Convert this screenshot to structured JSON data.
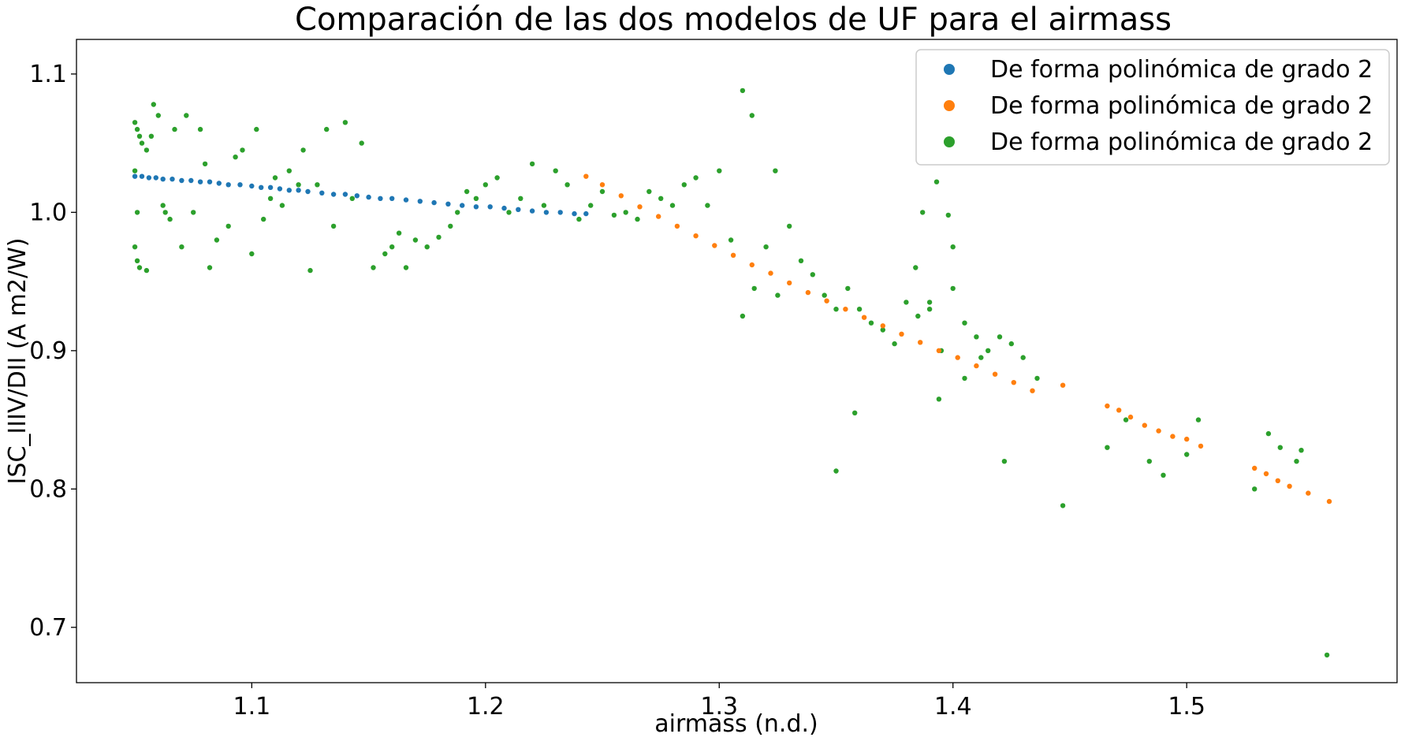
{
  "chart_data": {
    "type": "scatter",
    "title": "Comparación de las dos modelos de UF para el airmass",
    "xlabel": "airmass (n.d.)",
    "ylabel": "ISC_IIIV/DII (A m2/W)",
    "xlim": [
      1.025,
      1.59
    ],
    "ylim": [
      0.66,
      1.125
    ],
    "xticks": [
      1.1,
      1.2,
      1.3,
      1.4,
      1.5
    ],
    "xtick_labels": [
      "1.1",
      "1.2",
      "1.3",
      "1.4",
      "1.5"
    ],
    "yticks": [
      0.7,
      0.8,
      0.9,
      1.0,
      1.1
    ],
    "ytick_labels": [
      "0.7",
      "0.8",
      "0.9",
      "1.0",
      "1.1"
    ],
    "grid": false,
    "legend_position": "top-right",
    "series": [
      {
        "name": "De forma polinómica de grado 2",
        "color": "#1f77b4",
        "x": [
          1.05,
          1.053,
          1.056,
          1.059,
          1.062,
          1.066,
          1.07,
          1.074,
          1.078,
          1.082,
          1.086,
          1.09,
          1.095,
          1.1,
          1.104,
          1.108,
          1.112,
          1.116,
          1.12,
          1.124,
          1.13,
          1.135,
          1.14,
          1.145,
          1.15,
          1.155,
          1.16,
          1.166,
          1.172,
          1.178,
          1.184,
          1.19,
          1.196,
          1.202,
          1.208,
          1.214,
          1.22,
          1.226,
          1.232,
          1.238,
          1.243
        ],
        "y": [
          1.026,
          1.026,
          1.025,
          1.025,
          1.024,
          1.024,
          1.023,
          1.023,
          1.022,
          1.022,
          1.021,
          1.02,
          1.02,
          1.019,
          1.018,
          1.018,
          1.017,
          1.016,
          1.016,
          1.015,
          1.014,
          1.013,
          1.013,
          1.012,
          1.011,
          1.01,
          1.01,
          1.009,
          1.008,
          1.007,
          1.006,
          1.005,
          1.004,
          1.004,
          1.003,
          1.002,
          1.001,
          1.0,
          1.0,
          0.999,
          0.999
        ]
      },
      {
        "name": "De forma polinómica de grado 2",
        "color": "#ff7f0e",
        "x": [
          1.243,
          1.25,
          1.258,
          1.266,
          1.274,
          1.282,
          1.29,
          1.298,
          1.306,
          1.314,
          1.322,
          1.33,
          1.338,
          1.346,
          1.354,
          1.362,
          1.37,
          1.378,
          1.386,
          1.394,
          1.402,
          1.41,
          1.418,
          1.426,
          1.434,
          1.447,
          1.466,
          1.471,
          1.476,
          1.482,
          1.488,
          1.494,
          1.5,
          1.506,
          1.529,
          1.534,
          1.539,
          1.544,
          1.552,
          1.561
        ],
        "y": [
          1.026,
          1.02,
          1.012,
          1.004,
          0.997,
          0.99,
          0.983,
          0.976,
          0.969,
          0.962,
          0.956,
          0.949,
          0.942,
          0.936,
          0.93,
          0.924,
          0.918,
          0.912,
          0.906,
          0.9,
          0.895,
          0.889,
          0.883,
          0.877,
          0.871,
          0.875,
          0.86,
          0.857,
          0.852,
          0.846,
          0.842,
          0.838,
          0.836,
          0.831,
          0.815,
          0.811,
          0.806,
          0.802,
          0.797,
          0.791
        ]
      },
      {
        "name": "De forma polinómica de grado 2",
        "color": "#2ca02c",
        "x": [
          1.05,
          1.051,
          1.052,
          1.053,
          1.05,
          1.051,
          1.052,
          1.055,
          1.05,
          1.051,
          1.055,
          1.057,
          1.058,
          1.06,
          1.062,
          1.063,
          1.065,
          1.067,
          1.07,
          1.072,
          1.075,
          1.078,
          1.08,
          1.082,
          1.085,
          1.09,
          1.093,
          1.096,
          1.1,
          1.102,
          1.105,
          1.108,
          1.11,
          1.113,
          1.116,
          1.12,
          1.122,
          1.125,
          1.128,
          1.132,
          1.135,
          1.14,
          1.143,
          1.147,
          1.152,
          1.157,
          1.16,
          1.163,
          1.166,
          1.17,
          1.175,
          1.18,
          1.185,
          1.188,
          1.192,
          1.196,
          1.2,
          1.205,
          1.21,
          1.215,
          1.22,
          1.225,
          1.23,
          1.235,
          1.24,
          1.245,
          1.25,
          1.255,
          1.26,
          1.265,
          1.27,
          1.275,
          1.28,
          1.285,
          1.29,
          1.295,
          1.3,
          1.305,
          1.31,
          1.315,
          1.32,
          1.325,
          1.33,
          1.335,
          1.34,
          1.345,
          1.35,
          1.355,
          1.36,
          1.365,
          1.37,
          1.375,
          1.38,
          1.385,
          1.39,
          1.395,
          1.4,
          1.405,
          1.41,
          1.415,
          1.42,
          1.425,
          1.43,
          1.436,
          1.35,
          1.358,
          1.31,
          1.314,
          1.324,
          1.387,
          1.393,
          1.398,
          1.384,
          1.39,
          1.394,
          1.4,
          1.405,
          1.412,
          1.422,
          1.447,
          1.466,
          1.474,
          1.484,
          1.49,
          1.5,
          1.505,
          1.529,
          1.535,
          1.54,
          1.547,
          1.549,
          1.56
        ],
        "y": [
          1.065,
          1.06,
          1.055,
          1.05,
          0.975,
          0.965,
          0.96,
          0.958,
          1.03,
          1.0,
          1.045,
          1.055,
          1.078,
          1.07,
          1.005,
          1.0,
          0.995,
          1.06,
          0.975,
          1.07,
          1.0,
          1.06,
          1.035,
          0.96,
          0.98,
          0.99,
          1.04,
          1.045,
          0.97,
          1.06,
          0.995,
          1.01,
          1.025,
          1.005,
          1.03,
          1.02,
          1.045,
          0.958,
          1.02,
          1.06,
          0.99,
          1.065,
          1.01,
          1.05,
          0.96,
          0.97,
          0.975,
          0.985,
          0.96,
          0.98,
          0.975,
          0.982,
          0.99,
          1.0,
          1.015,
          1.01,
          1.02,
          1.025,
          1.0,
          1.01,
          1.035,
          1.005,
          1.03,
          1.02,
          0.995,
          1.005,
          1.015,
          0.998,
          1.0,
          0.995,
          1.015,
          1.01,
          1.005,
          1.02,
          1.025,
          1.005,
          1.03,
          0.98,
          0.925,
          0.945,
          0.975,
          0.94,
          0.99,
          0.965,
          0.955,
          0.94,
          0.93,
          0.945,
          0.93,
          0.92,
          0.915,
          0.905,
          0.935,
          0.925,
          0.93,
          0.9,
          0.945,
          0.92,
          0.91,
          0.9,
          0.91,
          0.905,
          0.895,
          0.88,
          0.813,
          0.855,
          1.088,
          1.07,
          1.03,
          1.0,
          1.022,
          0.998,
          0.96,
          0.935,
          0.865,
          0.975,
          0.88,
          0.895,
          0.82,
          0.788,
          0.83,
          0.85,
          0.82,
          0.81,
          0.825,
          0.85,
          0.8,
          0.84,
          0.83,
          0.82,
          0.828,
          0.68
        ]
      }
    ]
  }
}
